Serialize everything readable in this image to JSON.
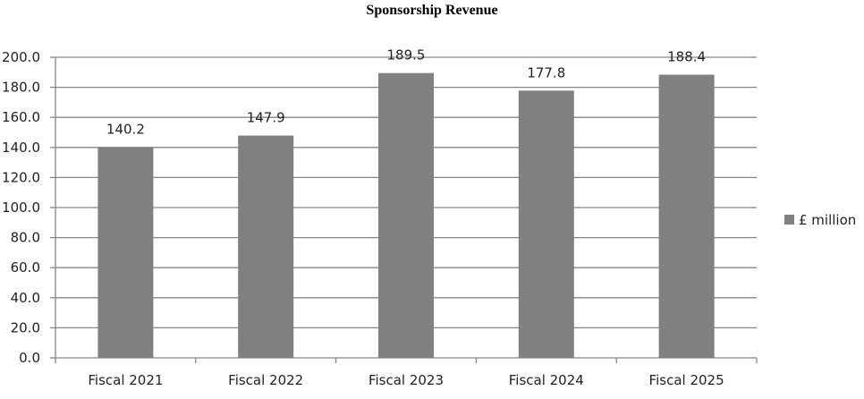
{
  "chart_data": {
    "type": "bar",
    "title": "Sponsorship Revenue",
    "categories": [
      "Fiscal 2021",
      "Fiscal 2022",
      "Fiscal 2023",
      "Fiscal 2024",
      "Fiscal 2025"
    ],
    "series": [
      {
        "name": "£ million",
        "values": [
          140.2,
          147.9,
          189.5,
          177.8,
          188.4
        ],
        "color": "#808080"
      }
    ],
    "data_labels": [
      "140.2",
      "147.9",
      "189.5",
      "177.8",
      "188.4"
    ],
    "ylim": [
      0,
      200
    ],
    "yticks": [
      "0.0",
      "20.0",
      "40.0",
      "60.0",
      "80.0",
      "100.0",
      "120.0",
      "140.0",
      "160.0",
      "180.0",
      "200.0"
    ],
    "grid": true,
    "legend_position": "right",
    "gridline_color": "#868686"
  }
}
